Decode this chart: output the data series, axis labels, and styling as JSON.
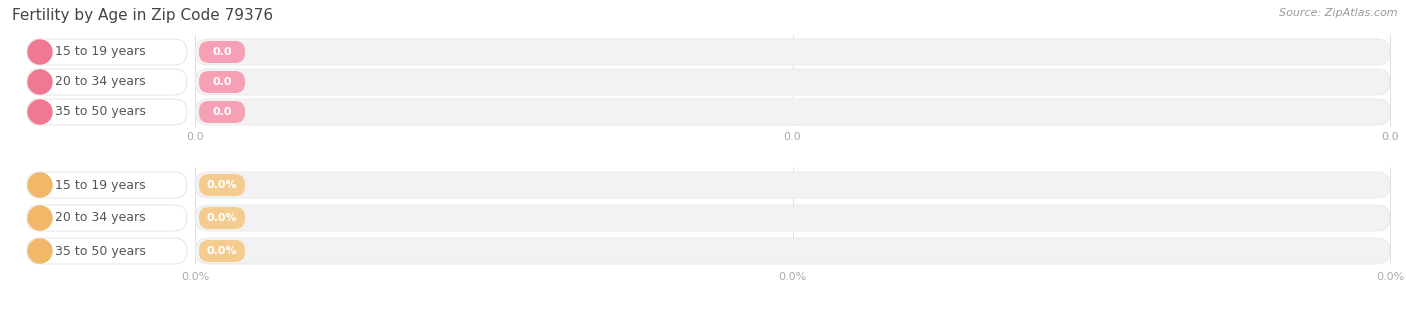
{
  "title": "Fertility by Age in Zip Code 79376",
  "source": "Source: ZipAtlas.com",
  "background_color": "#ffffff",
  "top_group": {
    "labels": [
      "15 to 19 years",
      "20 to 34 years",
      "35 to 50 years"
    ],
    "values": [
      0.0,
      0.0,
      0.0
    ],
    "bar_bg_color": "#f2f2f2",
    "bar_border_color": "#e8e8e8",
    "circle_color": "#f07890",
    "pill_bg": "#ffffff",
    "pill_border": "#e0e0e0",
    "badge_color": "#f5a0b5",
    "text_color": "#555555",
    "is_percent": false,
    "tick_suffix": ""
  },
  "bottom_group": {
    "labels": [
      "15 to 19 years",
      "20 to 34 years",
      "35 to 50 years"
    ],
    "values": [
      0.0,
      0.0,
      0.0
    ],
    "bar_bg_color": "#f2f2f2",
    "bar_border_color": "#e8e8e8",
    "circle_color": "#f0b868",
    "pill_bg": "#ffffff",
    "pill_border": "#e0e0e0",
    "badge_color": "#f5cc90",
    "text_color": "#555555",
    "is_percent": true,
    "tick_suffix": "%"
  },
  "title_fontsize": 11,
  "tick_fontsize": 8,
  "source_fontsize": 8,
  "label_fontsize": 9,
  "value_fontsize": 8
}
